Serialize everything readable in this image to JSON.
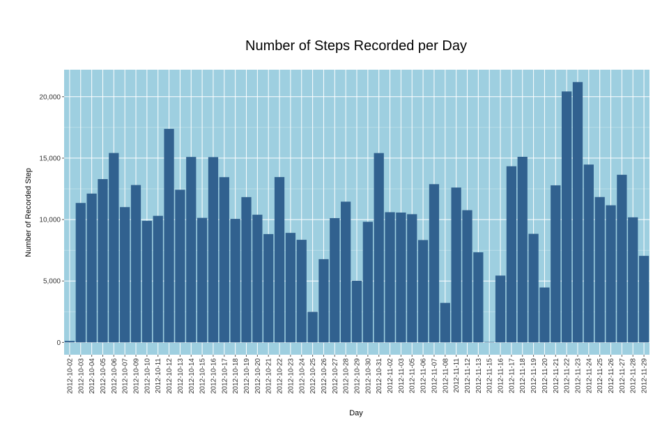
{
  "chart_data": {
    "type": "bar",
    "title": "Number of Steps Recorded per Day",
    "xlabel": "Day",
    "ylabel": "Number of Recorded Step",
    "ylim": [
      -1000,
      22200
    ],
    "yticks": [
      0,
      5000,
      10000,
      15000,
      20000
    ],
    "ytick_labels": [
      "0",
      "5,000",
      "10,000",
      "15,000",
      "20,000"
    ],
    "grid": true,
    "colors": {
      "panel": "#9ecfe0",
      "bar": "#31618f",
      "grid": "#ffffff"
    },
    "categories": [
      "2012-10-02",
      "2012-10-03",
      "2012-10-04",
      "2012-10-05",
      "2012-10-06",
      "2012-10-07",
      "2012-10-09",
      "2012-10-10",
      "2012-10-11",
      "2012-10-12",
      "2012-10-13",
      "2012-10-14",
      "2012-10-15",
      "2012-10-16",
      "2012-10-17",
      "2012-10-18",
      "2012-10-19",
      "2012-10-20",
      "2012-10-21",
      "2012-10-22",
      "2012-10-23",
      "2012-10-24",
      "2012-10-25",
      "2012-10-26",
      "2012-10-27",
      "2012-10-28",
      "2012-10-29",
      "2012-10-30",
      "2012-10-31",
      "2012-11-02",
      "2012-11-03",
      "2012-11-05",
      "2012-11-06",
      "2012-11-07",
      "2012-11-08",
      "2012-11-11",
      "2012-11-12",
      "2012-11-13",
      "2012-11-15",
      "2012-11-16",
      "2012-11-17",
      "2012-11-18",
      "2012-11-19",
      "2012-11-20",
      "2012-11-21",
      "2012-11-22",
      "2012-11-23",
      "2012-11-24",
      "2012-11-25",
      "2012-11-26",
      "2012-11-27",
      "2012-11-28",
      "2012-11-29"
    ],
    "values": [
      126,
      11352,
      12116,
      13294,
      15420,
      11015,
      12811,
      9900,
      10304,
      17382,
      12426,
      15098,
      10139,
      15084,
      13452,
      10056,
      11829,
      10395,
      8821,
      13460,
      8918,
      8355,
      2492,
      6778,
      10119,
      11458,
      5018,
      9819,
      15414,
      10600,
      10571,
      10439,
      8334,
      12883,
      3219,
      12608,
      10765,
      7336,
      41,
      5441,
      14339,
      15110,
      8841,
      4472,
      12787,
      20427,
      21194,
      14478,
      11834,
      11162,
      13646,
      10183,
      7047
    ]
  }
}
